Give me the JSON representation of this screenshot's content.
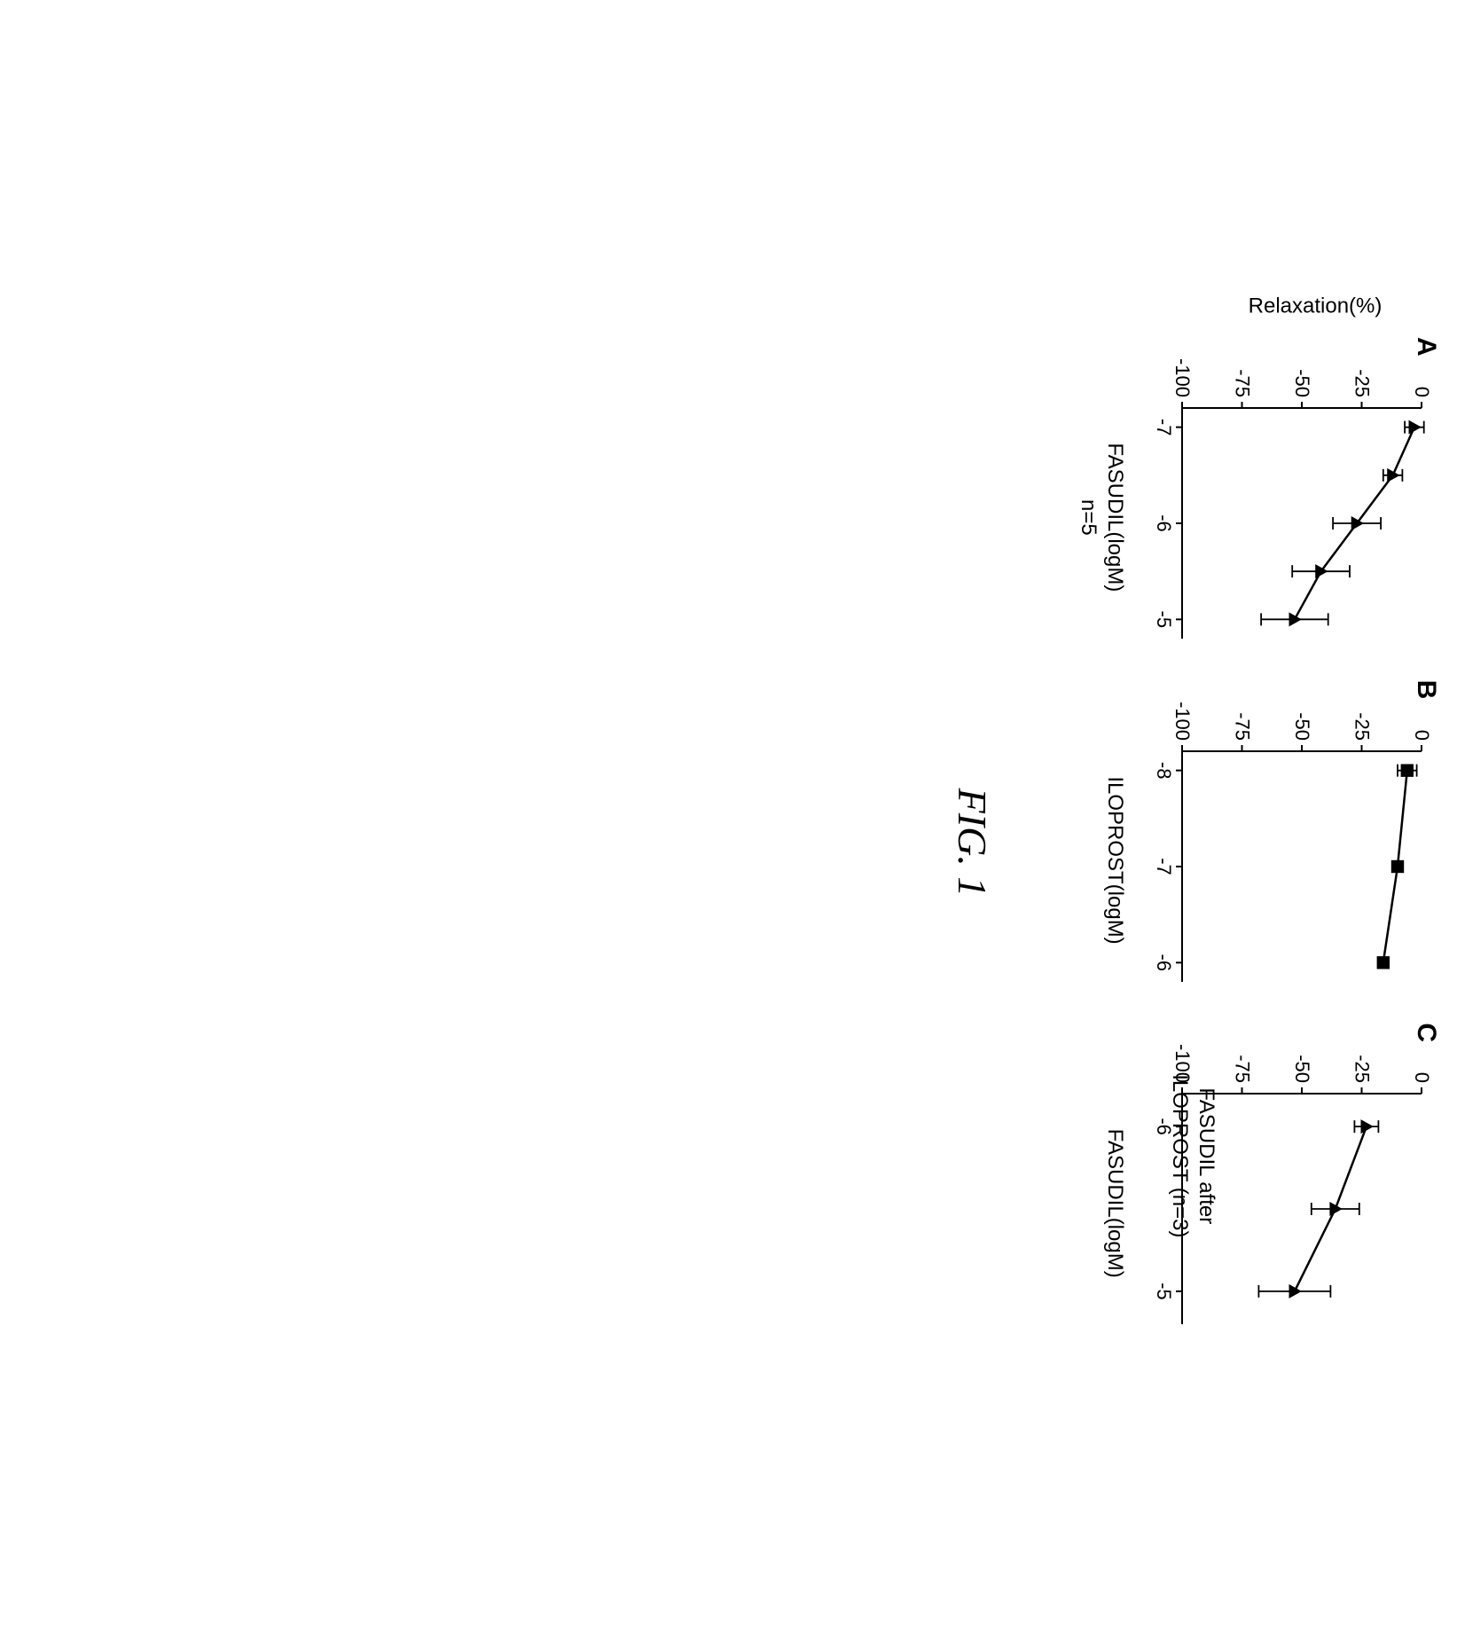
{
  "figure_caption": "FIG. 1",
  "caption_fontsize": 46,
  "caption_color": "#000000",
  "panel_letter_fontsize": 30,
  "axis_label_fontsize": 24,
  "tick_fontsize": 22,
  "line_color": "#000000",
  "axis_color": "#000000",
  "background_color": "#ffffff",
  "marker_size": 8,
  "line_width": 2.5,
  "errorbar_width": 1.8,
  "errorbar_cap": 7,
  "panels": {
    "A": {
      "letter": "A",
      "type": "line_errorbar",
      "marker": "triangle",
      "xlabel": "FASUDIL(logM)",
      "xlabel_sub": "n=5",
      "ylabel": "Relaxation(%)",
      "xlim": [
        -7.2,
        -4.8
      ],
      "ylim": [
        -100,
        0
      ],
      "yticks": [
        0,
        -25,
        -50,
        -75,
        -100
      ],
      "xticks": [
        -7,
        -6,
        -5
      ],
      "x": [
        -7.0,
        -6.5,
        -6.0,
        -5.5,
        -5.0
      ],
      "y": [
        -3,
        -12,
        -27,
        -42,
        -53
      ],
      "yerr": [
        4,
        4,
        10,
        12,
        14
      ]
    },
    "B": {
      "letter": "B",
      "type": "line_errorbar",
      "marker": "square",
      "xlabel": "ILOPROST(logM)",
      "xlim": [
        -8.2,
        -5.8
      ],
      "ylim": [
        -100,
        0
      ],
      "yticks": [
        0,
        -25,
        -50,
        -75,
        -100
      ],
      "xticks": [
        -8,
        -7,
        -6
      ],
      "x": [
        -8.0,
        -7.0,
        -6.0
      ],
      "y": [
        -6,
        -10,
        -16
      ],
      "yerr": [
        4,
        2,
        2
      ]
    },
    "C": {
      "letter": "C",
      "type": "line_errorbar",
      "marker": "triangle",
      "title_line1": "FASUDIL after",
      "title_line2": "ILOPROST (n=3)",
      "xlabel": "FASUDIL(logM)",
      "xlim": [
        -6.2,
        -4.8
      ],
      "ylim": [
        -100,
        0
      ],
      "yticks": [
        0,
        -25,
        -50,
        -75,
        -100
      ],
      "xticks": [
        -6,
        -5
      ],
      "x": [
        -6.0,
        -5.5,
        -5.0
      ],
      "y": [
        -23,
        -36,
        -53
      ],
      "yerr": [
        5,
        10,
        15
      ]
    }
  }
}
